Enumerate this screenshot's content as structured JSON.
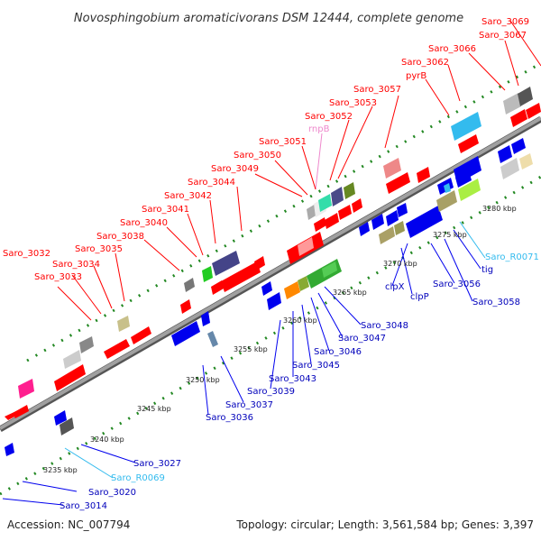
{
  "title": "Novosphingobium aromaticivorans DSM 12444, complete genome",
  "accession": "Accession: NC_007794",
  "summary": "Topology: circular; Length: 3,561,584 bp; Genes: 3,397",
  "colors": {
    "forward_gene": "#ff0000",
    "reverse_gene": "#0000ee",
    "rna_gene": "#33bbee",
    "rnpb": "#ee88cc",
    "backbone": "#888888",
    "tick": "#228822"
  },
  "kbp_labels": [
    "3235 kbp",
    "3240 kbp",
    "3245 kbp",
    "3250 kbp",
    "3255 kbp",
    "3260 kbp",
    "3265 kbp",
    "3270 kbp",
    "3275 kbp",
    "3280 kbp"
  ],
  "top_labels": [
    {
      "text": "Saro_3069",
      "kind": "forward"
    },
    {
      "text": "Saro_3067",
      "kind": "forward"
    },
    {
      "text": "Saro_3066",
      "kind": "forward"
    },
    {
      "text": "Saro_3062",
      "kind": "forward"
    },
    {
      "text": "pyrB",
      "kind": "forward"
    },
    {
      "text": "Saro_3057",
      "kind": "forward"
    },
    {
      "text": "Saro_3053",
      "kind": "forward"
    },
    {
      "text": "Saro_3052",
      "kind": "forward"
    },
    {
      "text": "rnpB",
      "kind": "rnpb"
    },
    {
      "text": "Saro_3051",
      "kind": "forward"
    },
    {
      "text": "Saro_3050",
      "kind": "forward"
    },
    {
      "text": "Saro_3049",
      "kind": "forward"
    },
    {
      "text": "Saro_3044",
      "kind": "forward"
    },
    {
      "text": "Saro_3042",
      "kind": "forward"
    },
    {
      "text": "Saro_3041",
      "kind": "forward"
    },
    {
      "text": "Saro_3040",
      "kind": "forward"
    },
    {
      "text": "Saro_3038",
      "kind": "forward"
    },
    {
      "text": "Saro_3035",
      "kind": "forward"
    },
    {
      "text": "Saro_3032",
      "kind": "forward"
    },
    {
      "text": "Saro_3034",
      "kind": "forward"
    },
    {
      "text": "Saro_3033",
      "kind": "forward"
    }
  ],
  "bottom_labels": [
    {
      "text": "Saro_R0071",
      "kind": "rna"
    },
    {
      "text": "tig",
      "kind": "reverse"
    },
    {
      "text": "Saro_3056",
      "kind": "reverse"
    },
    {
      "text": "Saro_3058",
      "kind": "reverse"
    },
    {
      "text": "clpX",
      "kind": "reverse"
    },
    {
      "text": "clpP",
      "kind": "reverse"
    },
    {
      "text": "Saro_3048",
      "kind": "reverse"
    },
    {
      "text": "Saro_3047",
      "kind": "reverse"
    },
    {
      "text": "Saro_3046",
      "kind": "reverse"
    },
    {
      "text": "Saro_3045",
      "kind": "reverse"
    },
    {
      "text": "Saro_3043",
      "kind": "reverse"
    },
    {
      "text": "Saro_3039",
      "kind": "reverse"
    },
    {
      "text": "Saro_3037",
      "kind": "reverse"
    },
    {
      "text": "Saro_3036",
      "kind": "reverse"
    },
    {
      "text": "Saro_3027",
      "kind": "reverse"
    },
    {
      "text": "Saro_R0069",
      "kind": "rna"
    },
    {
      "text": "Saro_3020",
      "kind": "reverse"
    },
    {
      "text": "Saro_3014",
      "kind": "reverse"
    }
  ]
}
